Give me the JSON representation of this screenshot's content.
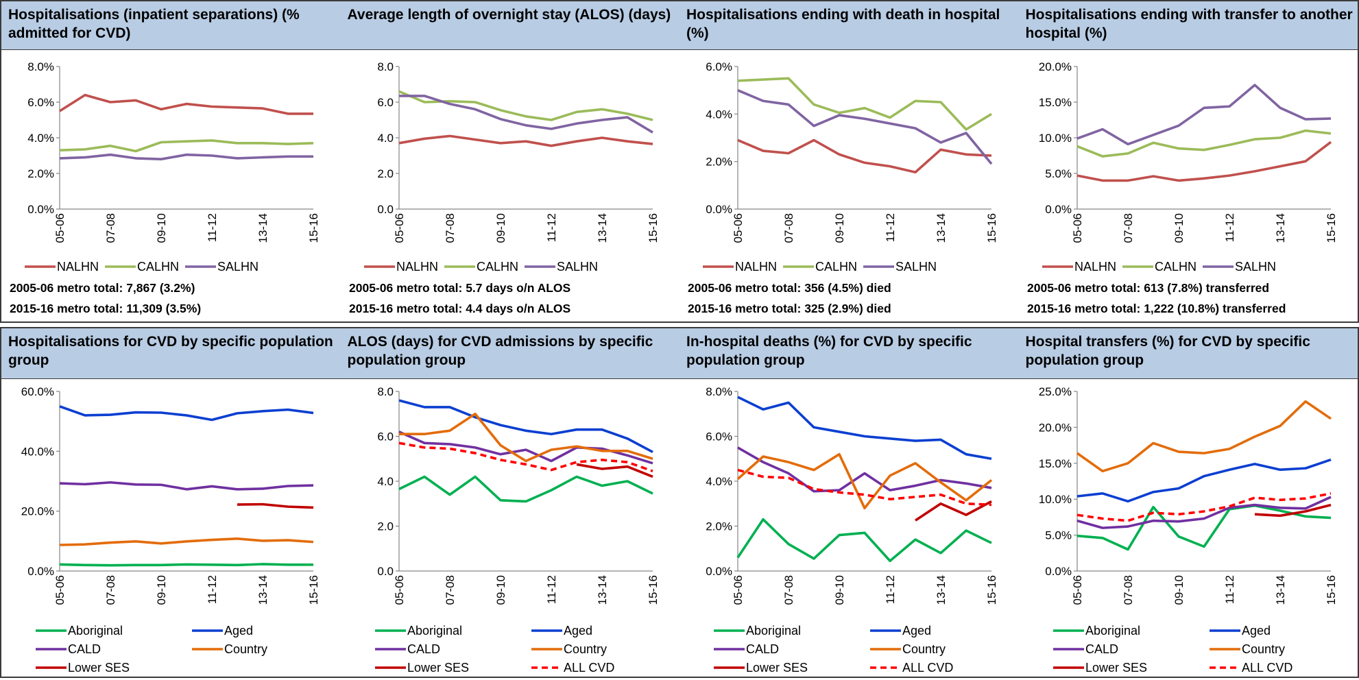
{
  "chart_data": [
    {
      "type": "line",
      "title": "Hospitalisations (inpatient separations) (% admitted for CVD)",
      "categories": [
        "05-06",
        null,
        "07-08",
        null,
        "09-10",
        null,
        "11-12",
        null,
        "13-14",
        null,
        "15-16"
      ],
      "ylim": [
        0,
        8
      ],
      "yticks": [
        {
          "value": 0,
          "label": "0.0%"
        },
        {
          "value": 2,
          "label": "2.0%"
        },
        {
          "value": 4,
          "label": "4.0%"
        },
        {
          "value": 6,
          "label": "6.0%"
        },
        {
          "value": 8,
          "label": "8.0%"
        }
      ],
      "series": [
        {
          "name": "NALHN",
          "color": "#c0504d",
          "values": [
            5.5,
            6.4,
            6.0,
            6.1,
            5.6,
            5.9,
            5.75,
            5.7,
            5.65,
            5.35,
            5.35
          ]
        },
        {
          "name": "CALHN",
          "color": "#9bbb59",
          "values": [
            3.3,
            3.35,
            3.55,
            3.25,
            3.75,
            3.8,
            3.85,
            3.7,
            3.7,
            3.65,
            3.7
          ]
        },
        {
          "name": "SALHN",
          "color": "#8064a2",
          "values": [
            2.85,
            2.9,
            3.05,
            2.85,
            2.8,
            3.05,
            3.0,
            2.85,
            2.9,
            2.95,
            2.95
          ]
        }
      ],
      "notes": [
        "2005-06 metro total: 7,867 (3.2%)",
        "2015-16 metro total: 11,309 (3.5%)"
      ]
    },
    {
      "type": "line",
      "title": "Average length of overnight stay (ALOS) (days)",
      "categories": [
        "05-06",
        null,
        "07-08",
        null,
        "09-10",
        null,
        "11-12",
        null,
        "13-14",
        null,
        "15-16"
      ],
      "ylim": [
        0,
        8
      ],
      "yticks": [
        {
          "value": 0,
          "label": "0.0"
        },
        {
          "value": 2,
          "label": "2.0"
        },
        {
          "value": 4,
          "label": "4.0"
        },
        {
          "value": 6,
          "label": "6.0"
        },
        {
          "value": 8,
          "label": "8.0"
        }
      ],
      "series": [
        {
          "name": "NALHN",
          "color": "#c0504d",
          "values": [
            3.7,
            3.95,
            4.1,
            3.9,
            3.7,
            3.8,
            3.55,
            3.8,
            4.0,
            3.8,
            3.65
          ]
        },
        {
          "name": "CALHN",
          "color": "#9bbb59",
          "values": [
            6.6,
            6.0,
            6.05,
            6.0,
            5.55,
            5.2,
            5.0,
            5.45,
            5.6,
            5.35,
            5.0
          ]
        },
        {
          "name": "SALHN",
          "color": "#8064a2",
          "values": [
            6.35,
            6.35,
            5.9,
            5.6,
            5.05,
            4.7,
            4.5,
            4.8,
            5.0,
            5.15,
            4.3
          ]
        }
      ],
      "notes": [
        "2005-06 metro total: 5.7 days o/n ALOS",
        "2015-16 metro total: 4.4 days o/n ALOS"
      ]
    },
    {
      "type": "line",
      "title": "Hospitalisations ending with death in hospital (%)",
      "categories": [
        "05-06",
        null,
        "07-08",
        null,
        "09-10",
        null,
        "11-12",
        null,
        "13-14",
        null,
        "15-16"
      ],
      "ylim": [
        0,
        6
      ],
      "yticks": [
        {
          "value": 0,
          "label": "0.0%"
        },
        {
          "value": 2,
          "label": "2.0%"
        },
        {
          "value": 4,
          "label": "4.0%"
        },
        {
          "value": 6,
          "label": "6.0%"
        }
      ],
      "series": [
        {
          "name": "NALHN",
          "color": "#c0504d",
          "values": [
            2.9,
            2.45,
            2.35,
            2.9,
            2.3,
            1.95,
            1.8,
            1.55,
            2.5,
            2.3,
            2.25
          ]
        },
        {
          "name": "CALHN",
          "color": "#9bbb59",
          "values": [
            5.4,
            5.45,
            5.5,
            4.4,
            4.05,
            4.25,
            3.85,
            4.55,
            4.5,
            3.35,
            4.0
          ]
        },
        {
          "name": "SALHN",
          "color": "#8064a2",
          "values": [
            5.0,
            4.55,
            4.4,
            3.5,
            3.95,
            3.8,
            3.6,
            3.4,
            2.8,
            3.2,
            1.9
          ]
        }
      ],
      "notes": [
        "2005-06 metro total: 356 (4.5%) died",
        "2015-16 metro total: 325 (2.9%) died"
      ]
    },
    {
      "type": "line",
      "title": "Hospitalisations ending with transfer to another hospital (%)",
      "categories": [
        "05-06",
        null,
        "07-08",
        null,
        "09-10",
        null,
        "11-12",
        null,
        "13-14",
        null,
        "15-16"
      ],
      "ylim": [
        0,
        20
      ],
      "yticks": [
        {
          "value": 0,
          "label": "0.0%"
        },
        {
          "value": 5,
          "label": "5.0%"
        },
        {
          "value": 10,
          "label": "10.0%"
        },
        {
          "value": 15,
          "label": "15.0%"
        },
        {
          "value": 20,
          "label": "20.0%"
        }
      ],
      "series": [
        {
          "name": "NALHN",
          "color": "#c0504d",
          "values": [
            4.7,
            4.0,
            4.0,
            4.6,
            4.0,
            4.3,
            4.7,
            5.3,
            6.0,
            6.7,
            9.4
          ]
        },
        {
          "name": "CALHN",
          "color": "#9bbb59",
          "values": [
            8.8,
            7.4,
            7.8,
            9.3,
            8.5,
            8.3,
            9.0,
            9.8,
            10.0,
            11.0,
            10.6
          ]
        },
        {
          "name": "SALHN",
          "color": "#8064a2",
          "values": [
            9.9,
            11.2,
            9.1,
            10.4,
            11.7,
            14.2,
            14.4,
            17.4,
            14.2,
            12.6,
            12.7
          ]
        }
      ],
      "notes": [
        "2005-06 metro total: 613 (7.8%) transferred",
        "2015-16 metro total: 1,222 (10.8%) transferred"
      ]
    },
    {
      "type": "line",
      "title": "Hospitalisations for CVD by specific population group",
      "categories": [
        "05-06",
        null,
        "07-08",
        null,
        "09-10",
        null,
        "11-12",
        null,
        "13-14",
        null,
        "15-16"
      ],
      "ylim": [
        0,
        60
      ],
      "yticks": [
        {
          "value": 0,
          "label": "0.0%"
        },
        {
          "value": 20,
          "label": "20.0%"
        },
        {
          "value": 40,
          "label": "40.0%"
        },
        {
          "value": 60,
          "label": "60.0%"
        }
      ],
      "series": [
        {
          "name": "Aboriginal",
          "color": "#00b050",
          "values": [
            2.2,
            2.0,
            1.9,
            2.0,
            2.0,
            2.2,
            2.1,
            2.0,
            2.3,
            2.1,
            2.1
          ]
        },
        {
          "name": "Aged",
          "color": "#0b3fd1",
          "values": [
            55.0,
            52.0,
            52.2,
            53.0,
            52.9,
            52.0,
            50.5,
            52.7,
            53.4,
            53.9,
            52.8
          ]
        },
        {
          "name": "CALD",
          "color": "#7030a0",
          "values": [
            29.3,
            29.0,
            29.6,
            28.9,
            28.8,
            27.3,
            28.3,
            27.3,
            27.5,
            28.4,
            28.6
          ]
        },
        {
          "name": "Country",
          "color": "#e36c0a",
          "values": [
            8.7,
            8.9,
            9.5,
            9.9,
            9.2,
            9.9,
            10.4,
            10.8,
            10.1,
            10.3,
            9.7
          ]
        },
        {
          "name": "Lower SES",
          "color": "#c00000",
          "values": [
            null,
            null,
            null,
            null,
            null,
            null,
            null,
            22.2,
            22.3,
            21.5,
            21.2
          ]
        }
      ]
    },
    {
      "type": "line",
      "title": "ALOS (days) for CVD admissions by specific population group",
      "categories": [
        "05-06",
        null,
        "07-08",
        null,
        "09-10",
        null,
        "11-12",
        null,
        "13-14",
        null,
        "15-16"
      ],
      "ylim": [
        0,
        8
      ],
      "yticks": [
        {
          "value": 0,
          "label": "0.0"
        },
        {
          "value": 2,
          "label": "2.0"
        },
        {
          "value": 4,
          "label": "4.0"
        },
        {
          "value": 6,
          "label": "6.0"
        },
        {
          "value": 8,
          "label": "8.0"
        }
      ],
      "series": [
        {
          "name": "Aboriginal",
          "color": "#00b050",
          "values": [
            3.65,
            4.2,
            3.4,
            4.2,
            3.15,
            3.1,
            3.6,
            4.2,
            3.8,
            4.0,
            3.45
          ]
        },
        {
          "name": "Aged",
          "color": "#0b3fd1",
          "values": [
            7.6,
            7.3,
            7.3,
            6.85,
            6.5,
            6.25,
            6.1,
            6.3,
            6.3,
            5.9,
            5.3
          ]
        },
        {
          "name": "CALD",
          "color": "#7030a0",
          "values": [
            6.2,
            5.7,
            5.65,
            5.5,
            5.2,
            5.4,
            4.9,
            5.5,
            5.45,
            5.15,
            4.8
          ]
        },
        {
          "name": "Country",
          "color": "#e36c0a",
          "values": [
            6.1,
            6.1,
            6.25,
            7.0,
            5.6,
            4.9,
            5.4,
            5.55,
            5.35,
            5.35,
            5.0
          ]
        },
        {
          "name": "Lower SES",
          "color": "#c00000",
          "values": [
            null,
            null,
            null,
            null,
            null,
            null,
            null,
            4.75,
            4.55,
            4.65,
            4.2
          ]
        },
        {
          "name": "ALL CVD",
          "color": "#ff0000",
          "dashed": true,
          "values": [
            5.7,
            5.5,
            5.45,
            5.25,
            4.95,
            4.75,
            4.5,
            4.85,
            4.95,
            4.85,
            4.45
          ]
        }
      ]
    },
    {
      "type": "line",
      "title": "In-hospital deaths (%) for CVD by specific population group",
      "categories": [
        "05-06",
        null,
        "07-08",
        null,
        "09-10",
        null,
        "11-12",
        null,
        "13-14",
        null,
        "15-16"
      ],
      "ylim": [
        0,
        8
      ],
      "yticks": [
        {
          "value": 0,
          "label": "0.0%"
        },
        {
          "value": 2,
          "label": "2.0%"
        },
        {
          "value": 4,
          "label": "4.0%"
        },
        {
          "value": 6,
          "label": "6.0%"
        },
        {
          "value": 8,
          "label": "8.0%"
        }
      ],
      "series": [
        {
          "name": "Aboriginal",
          "color": "#00b050",
          "values": [
            0.6,
            2.3,
            1.2,
            0.55,
            1.6,
            1.7,
            0.45,
            1.4,
            0.8,
            1.8,
            1.25
          ]
        },
        {
          "name": "Aged",
          "color": "#0b3fd1",
          "values": [
            7.75,
            7.2,
            7.5,
            6.4,
            6.2,
            6.0,
            5.9,
            5.8,
            5.85,
            5.2,
            5.0
          ]
        },
        {
          "name": "CALD",
          "color": "#7030a0",
          "values": [
            5.5,
            4.85,
            4.35,
            3.55,
            3.6,
            4.35,
            3.6,
            3.8,
            4.05,
            3.9,
            3.7
          ]
        },
        {
          "name": "Country",
          "color": "#e36c0a",
          "values": [
            4.1,
            5.1,
            4.85,
            4.5,
            5.2,
            2.8,
            4.25,
            4.8,
            3.95,
            3.15,
            4.05
          ]
        },
        {
          "name": "Lower SES",
          "color": "#c00000",
          "values": [
            null,
            null,
            null,
            null,
            null,
            null,
            null,
            2.25,
            3.0,
            2.5,
            3.1
          ]
        },
        {
          "name": "ALL CVD",
          "color": "#ff0000",
          "dashed": true,
          "values": [
            4.5,
            4.2,
            4.15,
            3.65,
            3.5,
            3.4,
            3.2,
            3.3,
            3.4,
            3.0,
            2.95
          ]
        }
      ]
    },
    {
      "type": "line",
      "title": "Hospital transfers (%) for CVD by specific population group",
      "categories": [
        "05-06",
        null,
        "07-08",
        null,
        "09-10",
        null,
        "11-12",
        null,
        "13-14",
        null,
        "15-16"
      ],
      "ylim": [
        0,
        25
      ],
      "yticks": [
        {
          "value": 0,
          "label": "0.0%"
        },
        {
          "value": 5,
          "label": "5.0%"
        },
        {
          "value": 10,
          "label": "10.0%"
        },
        {
          "value": 15,
          "label": "15.0%"
        },
        {
          "value": 20,
          "label": "20.0%"
        },
        {
          "value": 25,
          "label": "25.0%"
        }
      ],
      "series": [
        {
          "name": "Aboriginal",
          "color": "#00b050",
          "values": [
            4.9,
            4.6,
            3.0,
            8.9,
            4.8,
            3.4,
            8.6,
            9.1,
            8.4,
            7.6,
            7.4
          ]
        },
        {
          "name": "Aged",
          "color": "#0b3fd1",
          "values": [
            10.4,
            10.8,
            9.7,
            11.0,
            11.5,
            13.2,
            14.1,
            14.9,
            14.1,
            14.3,
            15.5
          ]
        },
        {
          "name": "CALD",
          "color": "#7030a0",
          "values": [
            7.0,
            6.0,
            6.2,
            7.0,
            6.9,
            7.3,
            8.8,
            9.2,
            8.8,
            8.7,
            10.3
          ]
        },
        {
          "name": "Country",
          "color": "#e36c0a",
          "values": [
            16.4,
            13.9,
            15.0,
            17.8,
            16.6,
            16.4,
            17.0,
            18.7,
            20.2,
            23.6,
            21.2
          ]
        },
        {
          "name": "Lower SES",
          "color": "#c00000",
          "values": [
            null,
            null,
            null,
            null,
            null,
            null,
            null,
            7.9,
            7.7,
            8.3,
            9.2
          ]
        },
        {
          "name": "ALL CVD",
          "color": "#ff0000",
          "dashed": true,
          "values": [
            7.8,
            7.3,
            7.0,
            8.1,
            7.9,
            8.3,
            9.0,
            10.2,
            9.9,
            10.1,
            10.8
          ]
        }
      ]
    }
  ]
}
